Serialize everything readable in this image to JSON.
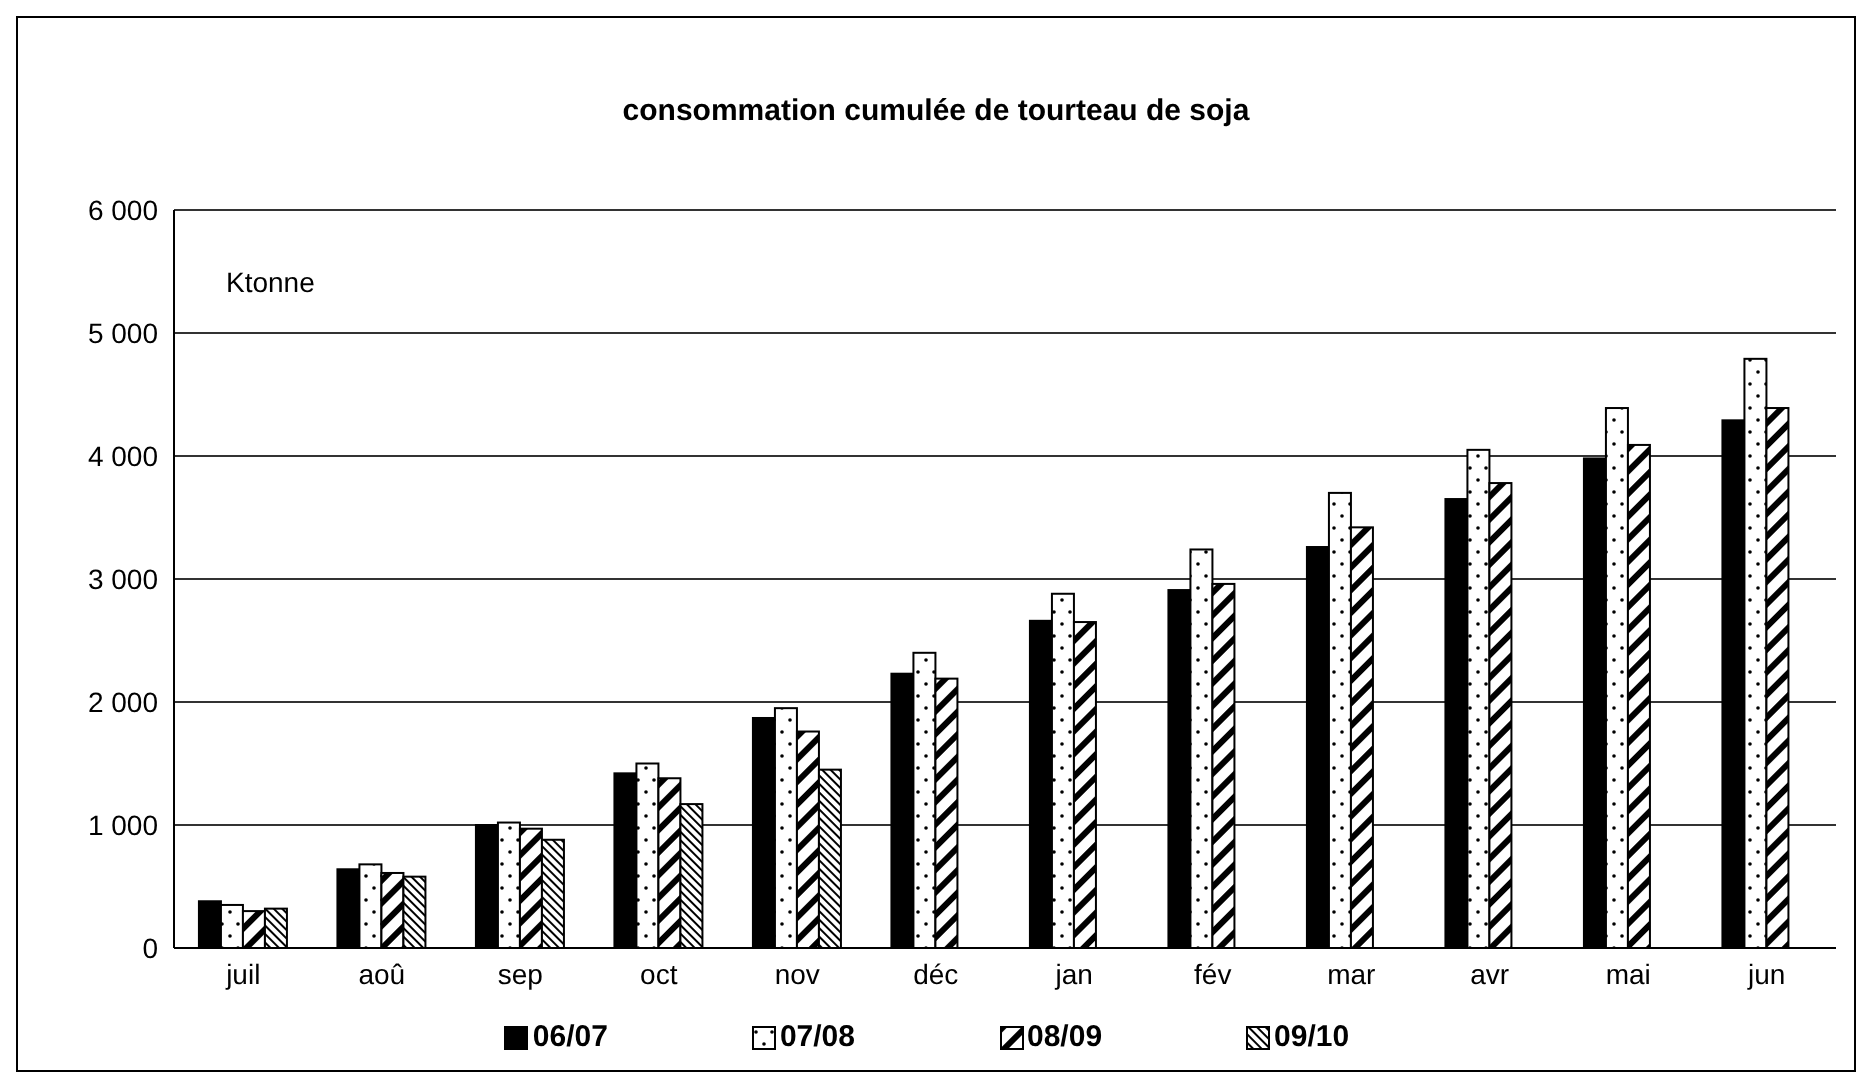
{
  "chart_data": {
    "type": "bar",
    "title": "consommation cumulée de tourteau de soja",
    "annotations": [
      "Ktonne"
    ],
    "categories": [
      "juil",
      "aoû",
      "sep",
      "oct",
      "nov",
      "déc",
      "jan",
      "fév",
      "mar",
      "avr",
      "mai",
      "jun"
    ],
    "series": [
      {
        "name": "06/07",
        "color": "#000000",
        "values": [
          380,
          640,
          1000,
          1420,
          1870,
          2230,
          2660,
          2910,
          3260,
          3650,
          3980,
          4290
        ]
      },
      {
        "name": "07/08",
        "color": "#ffffff",
        "values": [
          350,
          680,
          1020,
          1500,
          1950,
          2400,
          2880,
          3240,
          3700,
          4050,
          4390,
          4790
        ]
      },
      {
        "name": "08/09",
        "color": "#ffffff",
        "values": [
          300,
          610,
          970,
          1380,
          1760,
          2190,
          2650,
          2960,
          3420,
          3780,
          4090,
          4390
        ]
      },
      {
        "name": "09/10",
        "color": "#ffffff",
        "values": [
          320,
          580,
          880,
          1170,
          1450,
          null,
          null,
          null,
          null,
          null,
          null,
          null
        ]
      }
    ],
    "ylim": [
      0,
      6000
    ],
    "yticks": [
      {
        "value": 0,
        "label": "0"
      },
      {
        "value": 1000,
        "label": "1 000"
      },
      {
        "value": 2000,
        "label": "2 000"
      },
      {
        "value": 3000,
        "label": "3 000"
      },
      {
        "value": 4000,
        "label": "4 000"
      },
      {
        "value": 5000,
        "label": "5 000"
      },
      {
        "value": 6000,
        "label": "6 000"
      }
    ],
    "grid": "y",
    "legend": "bottom"
  }
}
